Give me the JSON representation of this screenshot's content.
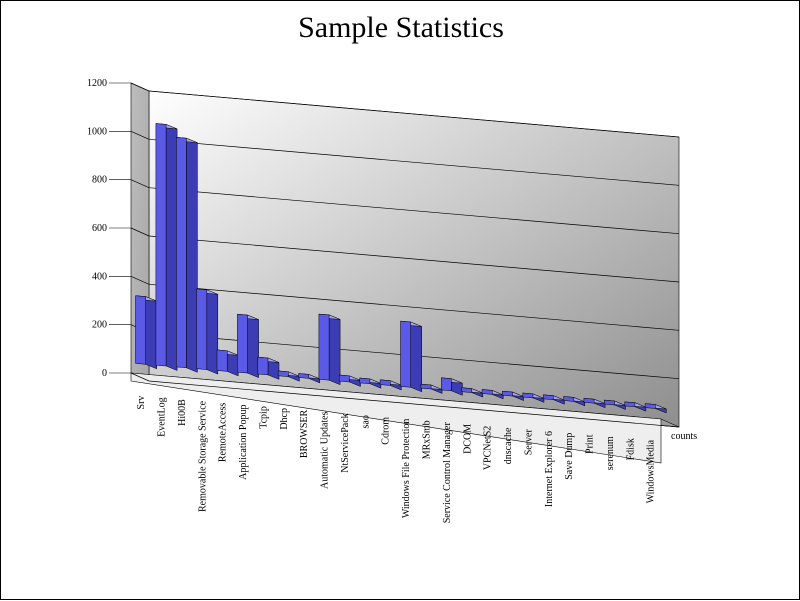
{
  "chart_data": {
    "type": "bar",
    "title": "Sample Statistics",
    "xlabel": "",
    "ylabel": "",
    "ylim": [
      0,
      1200
    ],
    "yticks": [
      0,
      200,
      400,
      600,
      800,
      1000,
      1200
    ],
    "grid": true,
    "three_d": true,
    "bar_color": "#5a5ae6",
    "categories": [
      "Srv",
      "EventLog",
      "Hi00B",
      "Removable Storage Service",
      "RemoteAccess",
      "Application Popup",
      "Tcpip",
      "Dhcp",
      "BROWSER",
      "Automatic Updates",
      "NtServicePack",
      "sao",
      "Cdrom",
      "Windows File Protection",
      "MRxSmb",
      "Service Control Manager",
      "DCOM",
      "VPCNetS2",
      "dnscache",
      "Server",
      "Internet Explorer 6",
      "Save Dump",
      "Print",
      "serenum",
      "Fdisk",
      "WindowsMedia"
    ],
    "series": [
      {
        "name": "counts",
        "values": [
          280,
          1000,
          950,
          330,
          85,
          240,
          70,
          20,
          10,
          270,
          25,
          20,
          20,
          270,
          15,
          50,
          10,
          5,
          3,
          3,
          3,
          3,
          3,
          3,
          3,
          3
        ]
      }
    ]
  }
}
